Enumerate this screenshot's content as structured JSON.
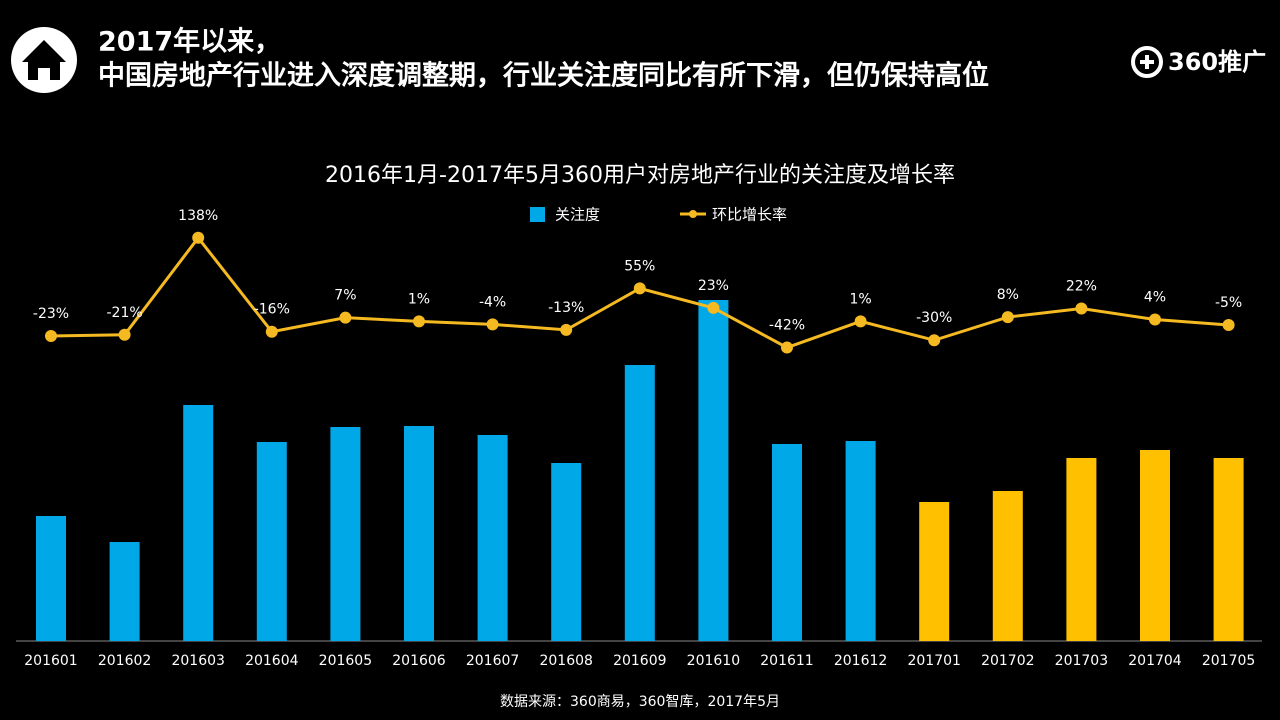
{
  "header": {
    "title_line1": "2017年以来，",
    "title_line2": "中国房地产行业进入深度调整期，行业关注度同比有所下滑，但仍保持高位",
    "logo": "360推广"
  },
  "chart_data": {
    "type": "bar-line",
    "title": "2016年1月-2017年5月360用户对房地产行业的关注度及增长率",
    "categories": [
      "201601",
      "201602",
      "201603",
      "201604",
      "201605",
      "201606",
      "201607",
      "201608",
      "201609",
      "201610",
      "201611",
      "201612",
      "201701",
      "201702",
      "201703",
      "201704",
      "201705"
    ],
    "series": [
      {
        "name": "关注度",
        "type": "bar",
        "color": "#00a8e8",
        "colors": [
          "#00a8e8",
          "#00a8e8",
          "#00a8e8",
          "#00a8e8",
          "#00a8e8",
          "#00a8e8",
          "#00a8e8",
          "#00a8e8",
          "#00a8e8",
          "#00a8e8",
          "#00a8e8",
          "#00a8e8",
          "#ffc000",
          "#ffc000",
          "#ffc000",
          "#ffc000",
          "#ffc000"
        ],
        "values": [
          125,
          99,
          236,
          199,
          214,
          215,
          206,
          178,
          276,
          341,
          197,
          200,
          139,
          150,
          183,
          191,
          183
        ]
      },
      {
        "name": "环比增长率",
        "type": "line",
        "axis": "y2",
        "color": "#f5b921",
        "values": [
          -23,
          -21,
          138,
          -16,
          7,
          1,
          -4,
          -13,
          55,
          23,
          -42,
          1,
          -30,
          8,
          22,
          4,
          -5
        ],
        "value_labels": [
          "-23%",
          "-21%",
          "138%",
          "-16%",
          "7%",
          "1%",
          "-4%",
          "-13%",
          "55%",
          "23%",
          "-42%",
          "1%",
          "-30%",
          "8%",
          "22%",
          "4%",
          "-5%"
        ]
      }
    ],
    "ylim": [
      0,
      441
    ],
    "y2lim": [
      -128,
      200
    ]
  },
  "footer": {
    "source": "数据来源：360商易，360智库，2017年5月"
  }
}
